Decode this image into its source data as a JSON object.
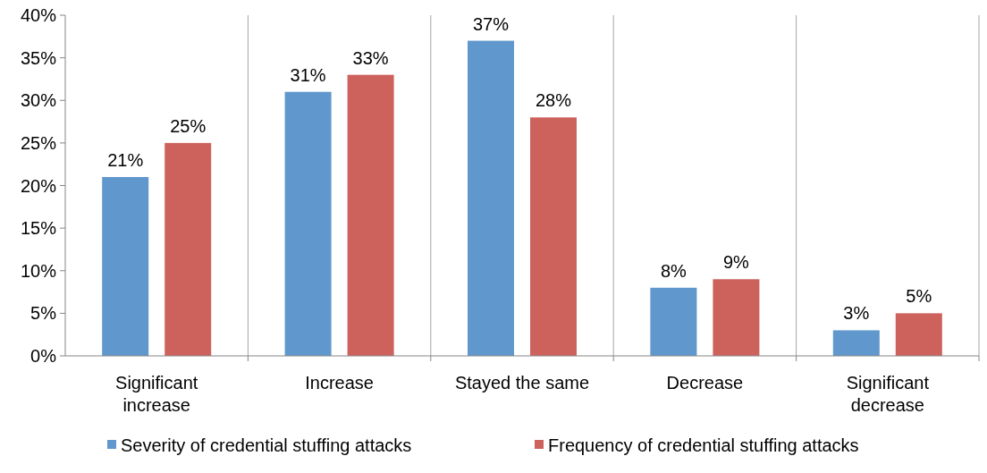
{
  "chart_data": {
    "type": "bar",
    "categories": [
      "Significant increase",
      "Increase",
      "Stayed the same",
      "Decrease",
      "Significant decrease"
    ],
    "series": [
      {
        "name": "Severity of credential stuffing attacks",
        "color": "#6097cc",
        "values": [
          21,
          31,
          37,
          8,
          3
        ]
      },
      {
        "name": "Frequency of credential stuffing attacks",
        "color": "#cd625d",
        "values": [
          25,
          33,
          28,
          9,
          5
        ]
      }
    ],
    "ylim": [
      0,
      40
    ],
    "yticks": [
      {
        "value": 0,
        "label": "0%"
      },
      {
        "value": 5,
        "label": "5%"
      },
      {
        "value": 10,
        "label": "10%"
      },
      {
        "value": 15,
        "label": "15%"
      },
      {
        "value": 20,
        "label": "20%"
      },
      {
        "value": 25,
        "label": "25%"
      },
      {
        "value": 30,
        "label": "30%"
      },
      {
        "value": 35,
        "label": "35%"
      },
      {
        "value": 40,
        "label": "40%"
      }
    ],
    "value_labels": [
      [
        "21%",
        "31%",
        "37%",
        "8%",
        "3%"
      ],
      [
        "25%",
        "33%",
        "28%",
        "9%",
        "5%"
      ]
    ],
    "grid": "x",
    "legend": "bottom"
  }
}
